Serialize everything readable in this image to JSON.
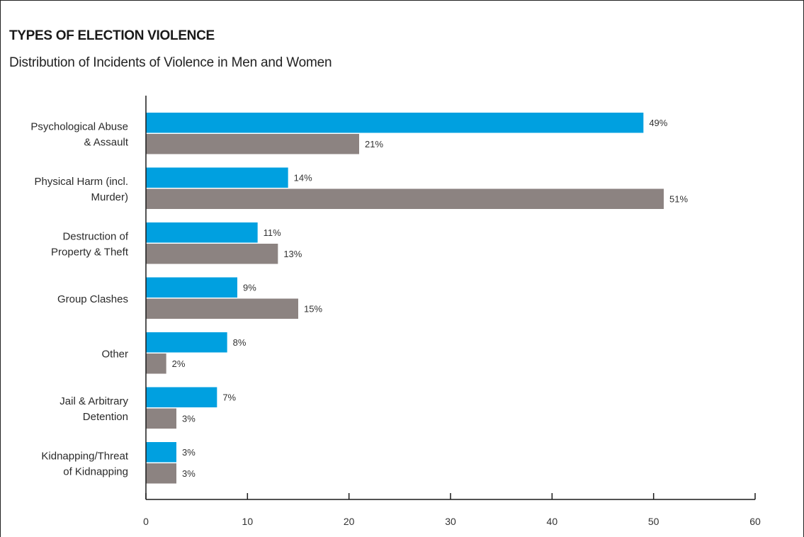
{
  "chart_data": {
    "type": "bar",
    "orientation": "horizontal",
    "title": "TYPES OF ELECTION VIOLENCE",
    "subtitle": "Distribution of Incidents of Violence in Men and Women",
    "xlabel": "",
    "ylabel": "",
    "xlim": [
      0,
      60
    ],
    "x_ticks": [
      "0",
      "10",
      "20",
      "30",
      "40",
      "50",
      "60"
    ],
    "categories": [
      [
        "Psychological Abuse",
        "& Assault"
      ],
      [
        "Physical Harm (incl.",
        "Murder)"
      ],
      [
        "Destruction of",
        "Property & Theft"
      ],
      [
        "Group Clashes"
      ],
      [
        "Other"
      ],
      [
        "Jail & Arbitrary",
        "Detention"
      ],
      [
        "Kidnapping/Threat",
        "of Kidnapping"
      ]
    ],
    "series": [
      {
        "color": "#00a0e0",
        "values": [
          49,
          14,
          11,
          9,
          8,
          7,
          3
        ],
        "labels": [
          "49%",
          "14%",
          "11%",
          "9%",
          "8%",
          "7%",
          "3%"
        ]
      },
      {
        "color": "#8c8381",
        "values": [
          21,
          51,
          13,
          15,
          2,
          3,
          3
        ],
        "labels": [
          "21%",
          "51%",
          "13%",
          "15%",
          "2%",
          "3%",
          "3%"
        ]
      }
    ],
    "grid": false,
    "legend": "none"
  }
}
